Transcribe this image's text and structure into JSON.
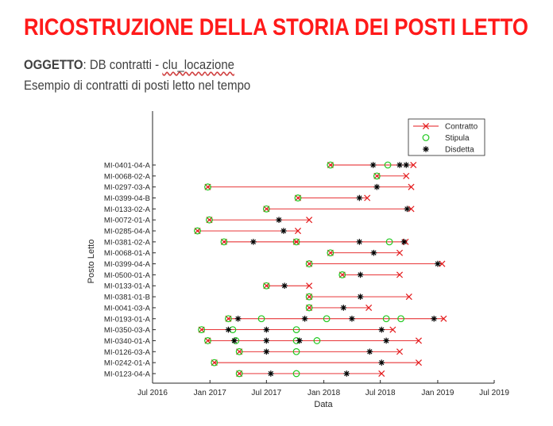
{
  "header": {
    "title": "RICOSTRUZIONE DELLA STORIA DEI POSTI LETTO",
    "subject_label": "OGGETTO",
    "subject_sep": ": DB contratti - ",
    "subject_table": "clu_locazione",
    "description": "Esempio di contratti di posti letto nel tempo"
  },
  "colors": {
    "title": "#ff1a1a",
    "contratto": "#e41a1c",
    "stipula": "#1ec81e",
    "disdetta": "#000000",
    "text": "#404040"
  },
  "chart_data": {
    "type": "timeline",
    "xlabel": "Data",
    "ylabel": "Posto Letto",
    "xlim": [
      "2016-07-01",
      "2019-07-01"
    ],
    "x_ticks": [
      {
        "date": "2016-07-01",
        "label": "Jul 2016"
      },
      {
        "date": "2017-01-01",
        "label": "Jan 2017"
      },
      {
        "date": "2017-07-01",
        "label": "Jul 2017"
      },
      {
        "date": "2018-01-01",
        "label": "Jan 2018"
      },
      {
        "date": "2018-07-01",
        "label": "Jul 2018"
      },
      {
        "date": "2019-01-01",
        "label": "Jan 2019"
      },
      {
        "date": "2019-07-01",
        "label": "Jul 2019"
      }
    ],
    "legend": {
      "position": "top-right",
      "entries": [
        {
          "label": "Contratto",
          "marker": "line-x"
        },
        {
          "label": "Stipula",
          "marker": "circle"
        },
        {
          "label": "Disdetta",
          "marker": "star"
        }
      ]
    },
    "rows": [
      {
        "label": "MI-0401-04-A",
        "contracts": [
          [
            "2018-01-22",
            "2018-10-15"
          ]
        ],
        "stipula": [
          "2018-01-22",
          "2018-07-25"
        ],
        "disdetta": [
          "2018-06-08",
          "2018-09-01",
          "2018-09-22"
        ]
      },
      {
        "label": "MI-0068-02-A",
        "contracts": [
          [
            "2018-06-20",
            "2018-09-22"
          ]
        ],
        "stipula": [
          "2018-06-20"
        ],
        "disdetta": []
      },
      {
        "label": "MI-0297-03-A",
        "contracts": [
          [
            "2016-12-25",
            "2018-10-08"
          ]
        ],
        "stipula": [
          "2016-12-25"
        ],
        "disdetta": [
          "2018-06-20"
        ]
      },
      {
        "label": "MI-0399-04-B",
        "contracts": [
          [
            "2017-10-10",
            "2018-05-20"
          ]
        ],
        "stipula": [
          "2017-10-10"
        ],
        "disdetta": [
          "2018-04-25"
        ]
      },
      {
        "label": "MI-0133-02-A",
        "contracts": [
          [
            "2017-07-01",
            "2018-10-08"
          ]
        ],
        "stipula": [
          "2017-07-01"
        ],
        "disdetta": [
          "2018-09-25"
        ]
      },
      {
        "label": "MI-0072-01-A",
        "contracts": [
          [
            "2016-12-30",
            "2017-11-15"
          ]
        ],
        "stipula": [
          "2016-12-30"
        ],
        "disdetta": [
          "2017-08-10"
        ]
      },
      {
        "label": "MI-0285-04-A",
        "contracts": [
          [
            "2016-11-22",
            "2017-10-10"
          ]
        ],
        "stipula": [
          "2016-11-22"
        ],
        "disdetta": [
          "2017-08-25"
        ]
      },
      {
        "label": "MI-0381-02-A",
        "contracts": [
          [
            "2017-02-15",
            "2017-10-05"
          ],
          [
            "2017-10-05",
            "2018-09-20"
          ]
        ],
        "stipula": [
          "2017-02-15",
          "2017-10-05",
          "2018-07-30"
        ],
        "disdetta": [
          "2017-05-20",
          "2018-04-25",
          "2018-09-15"
        ]
      },
      {
        "label": "MI-0068-01-A",
        "contracts": [
          [
            "2018-01-22",
            "2018-09-01"
          ]
        ],
        "stipula": [
          "2018-01-22"
        ],
        "disdetta": [
          "2018-06-10"
        ]
      },
      {
        "label": "MI-0399-04-A",
        "contracts": [
          [
            "2017-11-15",
            "2019-01-15"
          ]
        ],
        "stipula": [
          "2017-11-15"
        ],
        "disdetta": [
          "2019-01-01"
        ]
      },
      {
        "label": "MI-0500-01-A",
        "contracts": [
          [
            "2018-03-01",
            "2018-09-01"
          ]
        ],
        "stipula": [
          "2018-03-01"
        ],
        "disdetta": [
          "2018-04-28"
        ]
      },
      {
        "label": "MI-0133-01-A",
        "contracts": [
          [
            "2017-07-01",
            "2017-11-15"
          ]
        ],
        "stipula": [
          "2017-07-01"
        ],
        "disdetta": [
          "2017-08-28"
        ]
      },
      {
        "label": "MI-0381-01-B",
        "contracts": [
          [
            "2017-11-15",
            "2018-10-01"
          ]
        ],
        "stipula": [
          "2017-11-15"
        ],
        "disdetta": [
          "2018-04-28"
        ]
      },
      {
        "label": "MI-0041-03-A",
        "contracts": [
          [
            "2017-11-15",
            "2018-05-25"
          ]
        ],
        "stipula": [
          "2017-11-15"
        ],
        "disdetta": [
          "2018-03-05"
        ]
      },
      {
        "label": "MI-0193-01-A",
        "contracts": [
          [
            "2017-03-01",
            "2019-01-20"
          ]
        ],
        "stipula": [
          "2017-03-01",
          "2017-06-15",
          "2018-01-10",
          "2018-07-20",
          "2018-09-05"
        ],
        "disdetta": [
          "2017-04-01",
          "2017-11-01",
          "2018-04-01",
          "2018-12-20"
        ]
      },
      {
        "label": "MI-0350-03-A",
        "contracts": [
          [
            "2016-12-05",
            "2018-08-10"
          ]
        ],
        "stipula": [
          "2016-12-05",
          "2017-03-15",
          "2017-10-05"
        ],
        "disdetta": [
          "2017-03-01",
          "2017-07-01",
          "2018-07-05"
        ]
      },
      {
        "label": "MI-0340-01-A",
        "contracts": [
          [
            "2016-12-25",
            "2018-11-01"
          ]
        ],
        "stipula": [
          "2016-12-25",
          "2017-03-25",
          "2017-10-05",
          "2017-12-10"
        ],
        "disdetta": [
          "2017-03-20",
          "2017-07-01",
          "2017-10-15",
          "2018-07-20"
        ]
      },
      {
        "label": "MI-0126-03-A",
        "contracts": [
          [
            "2017-04-05",
            "2018-09-01"
          ]
        ],
        "stipula": [
          "2017-04-05",
          "2017-10-05"
        ],
        "disdetta": [
          "2017-07-01",
          "2018-05-28"
        ]
      },
      {
        "label": "MI-0242-01-A",
        "contracts": [
          [
            "2017-01-15",
            "2018-11-01"
          ]
        ],
        "stipula": [
          "2017-01-15"
        ],
        "disdetta": [
          "2018-07-05"
        ]
      },
      {
        "label": "MI-0123-04-A",
        "contracts": [
          [
            "2017-04-05",
            "2018-07-05"
          ]
        ],
        "stipula": [
          "2017-04-05",
          "2017-10-05"
        ],
        "disdetta": [
          "2017-07-15",
          "2018-03-15"
        ]
      }
    ]
  }
}
